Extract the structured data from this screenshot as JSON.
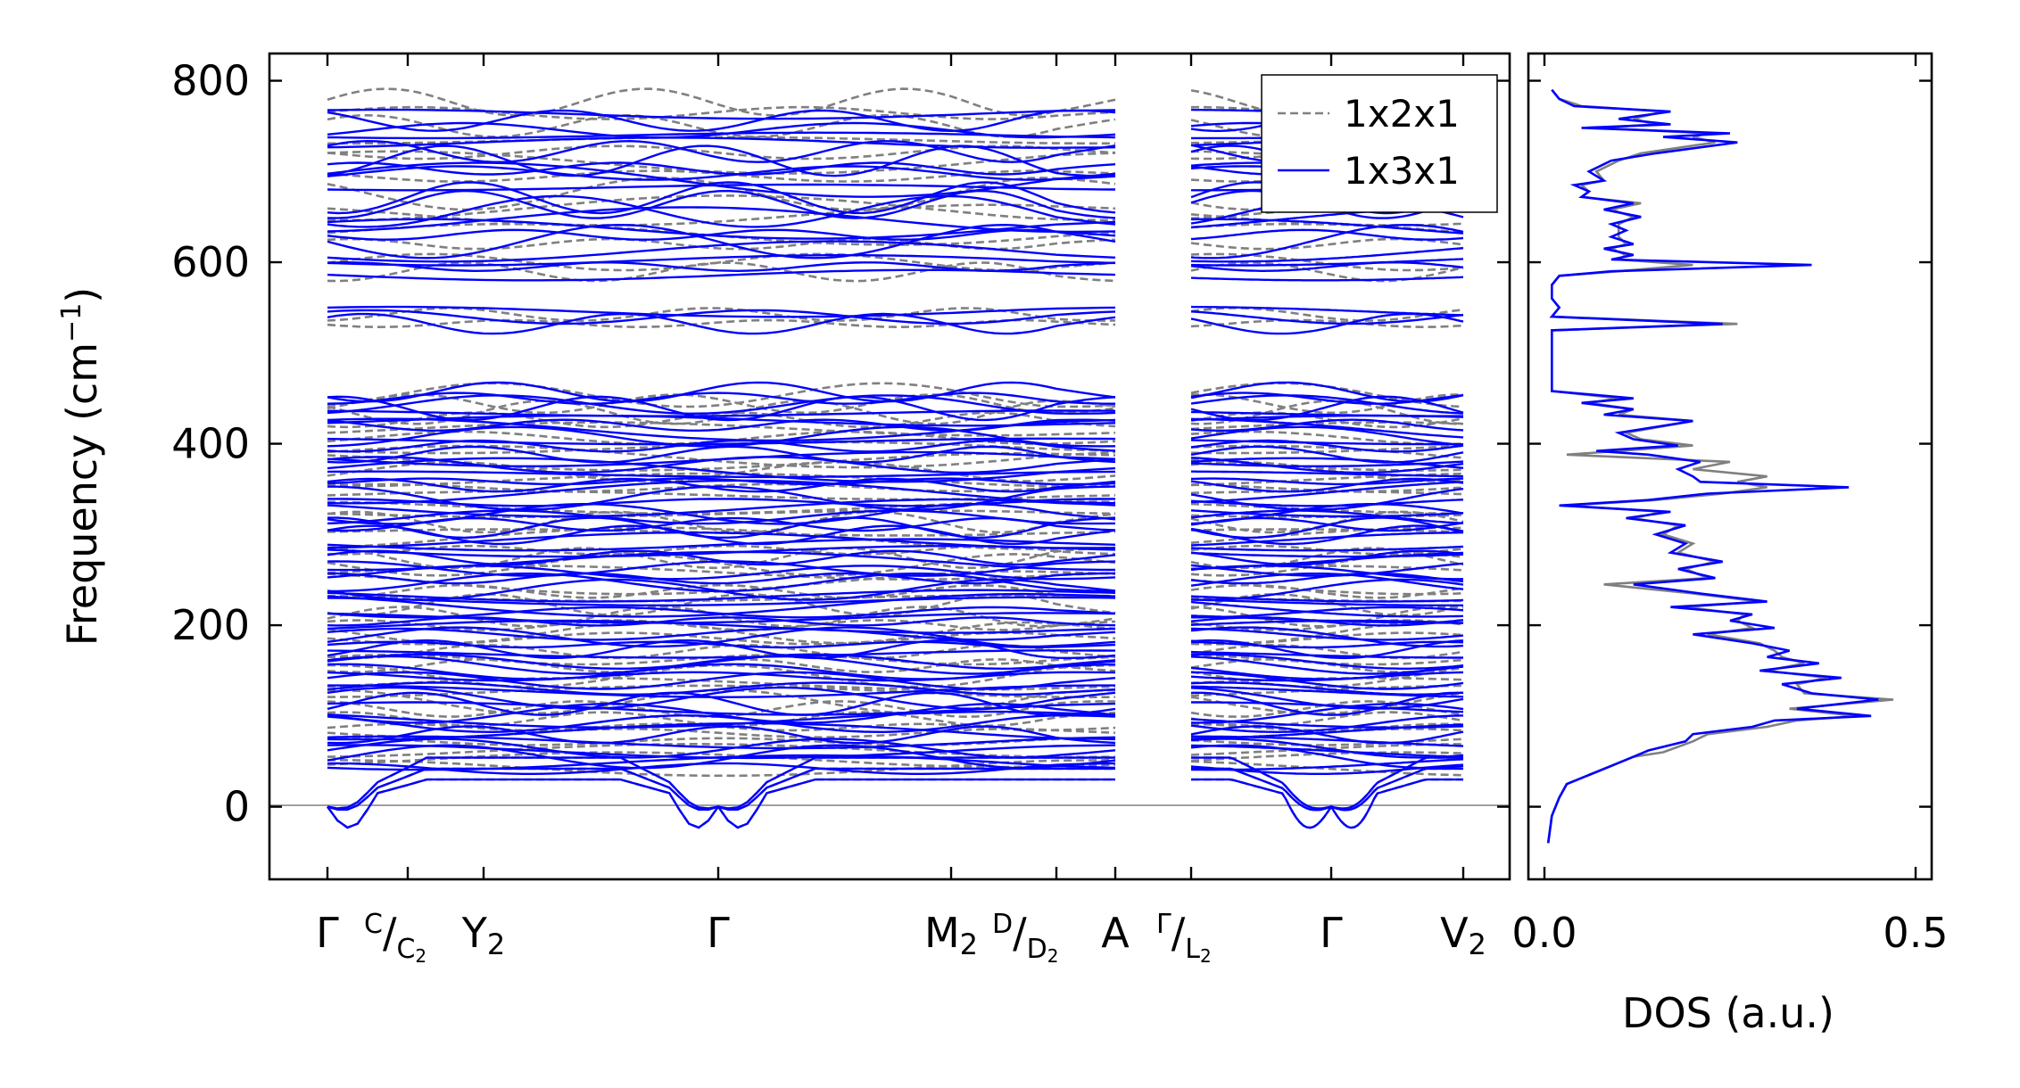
{
  "chart_data": [
    {
      "type": "line",
      "title": "",
      "ylabel": "Frequency (cm⁻¹)",
      "yticks": [
        0,
        200,
        400,
        600,
        800
      ],
      "ylim": [
        -80,
        830
      ],
      "grid": false,
      "legend_position": "top-right",
      "legend": [
        {
          "label": "1x2x1",
          "style": "dashed",
          "color": "#808080"
        },
        {
          "label": "1x3x1",
          "style": "solid",
          "color": "#0000ff"
        }
      ],
      "xtick_positions": [
        0,
        0.2,
        0.4,
        1.0,
        1.6,
        1.9,
        2.0,
        2.2,
        2.55,
        2.9
      ],
      "path_segments": [
        [
          0,
          2.0
        ],
        [
          2.2,
          2.9
        ]
      ],
      "series": [
        {
          "name": "1x3x1",
          "color": "#0000ff",
          "style": "solid",
          "gap_groups": [
            {
              "start": 40,
              "end": 460,
              "count": 70
            },
            {
              "start": 532,
              "end": 550,
              "count": 3
            },
            {
              "start": 585,
              "end": 770,
              "count": 22
            }
          ],
          "acoustic_minimum": -30
        },
        {
          "name": "1x2x1",
          "color": "#808080",
          "style": "dashed",
          "gap_groups": [
            {
              "start": 40,
              "end": 460,
              "count": 45
            },
            {
              "start": 530,
              "end": 548,
              "count": 2
            },
            {
              "start": 585,
              "end": 790,
              "count": 14
            }
          ],
          "acoustic_minimum": -30
        }
      ]
    },
    {
      "type": "line",
      "xlabel": "DOS (a.u.)",
      "xticks": [
        "0.0",
        "0.5"
      ],
      "xlim": [
        0,
        0.5
      ],
      "ylim": [
        -80,
        830
      ],
      "series": [
        {
          "name": "1x3x1",
          "color": "#0000ff",
          "points": [
            [
              0.005,
              -40
            ],
            [
              0.01,
              -10
            ],
            [
              0.02,
              10
            ],
            [
              0.03,
              25
            ],
            [
              0.06,
              35
            ],
            [
              0.09,
              45
            ],
            [
              0.12,
              55
            ],
            [
              0.14,
              62
            ],
            [
              0.19,
              72
            ],
            [
              0.2,
              80
            ],
            [
              0.28,
              88
            ],
            [
              0.31,
              95
            ],
            [
              0.44,
              100
            ],
            [
              0.34,
              108
            ],
            [
              0.45,
              118
            ],
            [
              0.36,
              125
            ],
            [
              0.32,
              135
            ],
            [
              0.4,
              142
            ],
            [
              0.29,
              150
            ],
            [
              0.37,
              158
            ],
            [
              0.3,
              165
            ],
            [
              0.33,
              172
            ],
            [
              0.28,
              180
            ],
            [
              0.2,
              190
            ],
            [
              0.31,
              197
            ],
            [
              0.25,
              205
            ],
            [
              0.28,
              212
            ],
            [
              0.17,
              220
            ],
            [
              0.3,
              226
            ],
            [
              0.21,
              235
            ],
            [
              0.12,
              245
            ],
            [
              0.23,
              252
            ],
            [
              0.18,
              262
            ],
            [
              0.24,
              270
            ],
            [
              0.17,
              280
            ],
            [
              0.19,
              290
            ],
            [
              0.15,
              300
            ],
            [
              0.19,
              310
            ],
            [
              0.11,
              318
            ],
            [
              0.17,
              325
            ],
            [
              0.02,
              332
            ],
            [
              0.14,
              338
            ],
            [
              0.22,
              345
            ],
            [
              0.41,
              352
            ],
            [
              0.21,
              358
            ],
            [
              0.2,
              364
            ],
            [
              0.18,
              372
            ],
            [
              0.21,
              380
            ],
            [
              0.14,
              388
            ],
            [
              0.07,
              392
            ],
            [
              0.18,
              398
            ],
            [
              0.12,
              405
            ],
            [
              0.1,
              412
            ],
            [
              0.2,
              425
            ],
            [
              0.08,
              432
            ],
            [
              0.12,
              438
            ],
            [
              0.05,
              445
            ],
            [
              0.12,
              450
            ],
            [
              0.01,
              458
            ],
            [
              0.01,
              470
            ],
            [
              0.01,
              500
            ],
            [
              0.01,
              525
            ],
            [
              0.24,
              532
            ],
            [
              0.01,
              540
            ],
            [
              0.02,
              550
            ],
            [
              0.01,
              560
            ],
            [
              0.01,
              575
            ],
            [
              0.02,
              585
            ],
            [
              0.09,
              590
            ],
            [
              0.36,
              597
            ],
            [
              0.09,
              603
            ],
            [
              0.12,
              608
            ],
            [
              0.08,
              615
            ],
            [
              0.12,
              620
            ],
            [
              0.09,
              628
            ],
            [
              0.11,
              635
            ],
            [
              0.09,
              642
            ],
            [
              0.13,
              650
            ],
            [
              0.08,
              658
            ],
            [
              0.12,
              665
            ],
            [
              0.05,
              672
            ],
            [
              0.06,
              678
            ],
            [
              0.04,
              685
            ],
            [
              0.08,
              690
            ],
            [
              0.06,
              700
            ],
            [
              0.09,
              712
            ],
            [
              0.15,
              720
            ],
            [
              0.26,
              732
            ],
            [
              0.16,
              738
            ],
            [
              0.25,
              742
            ],
            [
              0.05,
              748
            ],
            [
              0.17,
              752
            ],
            [
              0.1,
              758
            ],
            [
              0.17,
              766
            ],
            [
              0.04,
              772
            ],
            [
              0.02,
              780
            ],
            [
              0.01,
              790
            ]
          ]
        },
        {
          "name": "1x2x1",
          "color": "#808080",
          "points": [
            [
              0.005,
              -40
            ],
            [
              0.01,
              -10
            ],
            [
              0.02,
              10
            ],
            [
              0.03,
              25
            ],
            [
              0.06,
              35
            ],
            [
              0.09,
              45
            ],
            [
              0.12,
              55
            ],
            [
              0.16,
              60
            ],
            [
              0.2,
              72
            ],
            [
              0.22,
              80
            ],
            [
              0.3,
              88
            ],
            [
              0.34,
              95
            ],
            [
              0.42,
              100
            ],
            [
              0.33,
              108
            ],
            [
              0.47,
              118
            ],
            [
              0.35,
              125
            ],
            [
              0.34,
              135
            ],
            [
              0.38,
              142
            ],
            [
              0.3,
              150
            ],
            [
              0.35,
              158
            ],
            [
              0.32,
              165
            ],
            [
              0.31,
              172
            ],
            [
              0.29,
              180
            ],
            [
              0.22,
              190
            ],
            [
              0.28,
              197
            ],
            [
              0.26,
              205
            ],
            [
              0.27,
              212
            ],
            [
              0.19,
              220
            ],
            [
              0.29,
              226
            ],
            [
              0.2,
              235
            ],
            [
              0.08,
              245
            ],
            [
              0.22,
              252
            ],
            [
              0.19,
              262
            ],
            [
              0.23,
              270
            ],
            [
              0.18,
              280
            ],
            [
              0.2,
              290
            ],
            [
              0.16,
              300
            ],
            [
              0.18,
              310
            ],
            [
              0.12,
              318
            ],
            [
              0.16,
              325
            ],
            [
              0.03,
              332
            ],
            [
              0.15,
              338
            ],
            [
              0.24,
              345
            ],
            [
              0.3,
              352
            ],
            [
              0.26,
              358
            ],
            [
              0.3,
              364
            ],
            [
              0.2,
              372
            ],
            [
              0.25,
              380
            ],
            [
              0.03,
              388
            ],
            [
              0.1,
              392
            ],
            [
              0.2,
              398
            ],
            [
              0.13,
              405
            ],
            [
              0.11,
              412
            ],
            [
              0.2,
              425
            ],
            [
              0.1,
              432
            ],
            [
              0.12,
              438
            ],
            [
              0.06,
              445
            ],
            [
              0.1,
              450
            ],
            [
              0.01,
              458
            ],
            [
              0.01,
              470
            ],
            [
              0.01,
              500
            ],
            [
              0.01,
              525
            ],
            [
              0.26,
              532
            ],
            [
              0.01,
              540
            ],
            [
              0.02,
              550
            ],
            [
              0.01,
              560
            ],
            [
              0.01,
              575
            ],
            [
              0.02,
              585
            ],
            [
              0.1,
              590
            ],
            [
              0.2,
              597
            ],
            [
              0.1,
              603
            ],
            [
              0.11,
              608
            ],
            [
              0.09,
              615
            ],
            [
              0.11,
              620
            ],
            [
              0.1,
              628
            ],
            [
              0.1,
              635
            ],
            [
              0.1,
              642
            ],
            [
              0.12,
              650
            ],
            [
              0.09,
              658
            ],
            [
              0.13,
              665
            ],
            [
              0.05,
              672
            ],
            [
              0.06,
              678
            ],
            [
              0.05,
              685
            ],
            [
              0.08,
              690
            ],
            [
              0.07,
              700
            ],
            [
              0.1,
              712
            ],
            [
              0.13,
              720
            ],
            [
              0.23,
              732
            ],
            [
              0.2,
              738
            ],
            [
              0.22,
              742
            ],
            [
              0.07,
              748
            ],
            [
              0.15,
              752
            ],
            [
              0.12,
              758
            ],
            [
              0.16,
              766
            ],
            [
              0.05,
              772
            ],
            [
              0.02,
              780
            ],
            [
              0.01,
              790
            ]
          ]
        }
      ]
    }
  ]
}
